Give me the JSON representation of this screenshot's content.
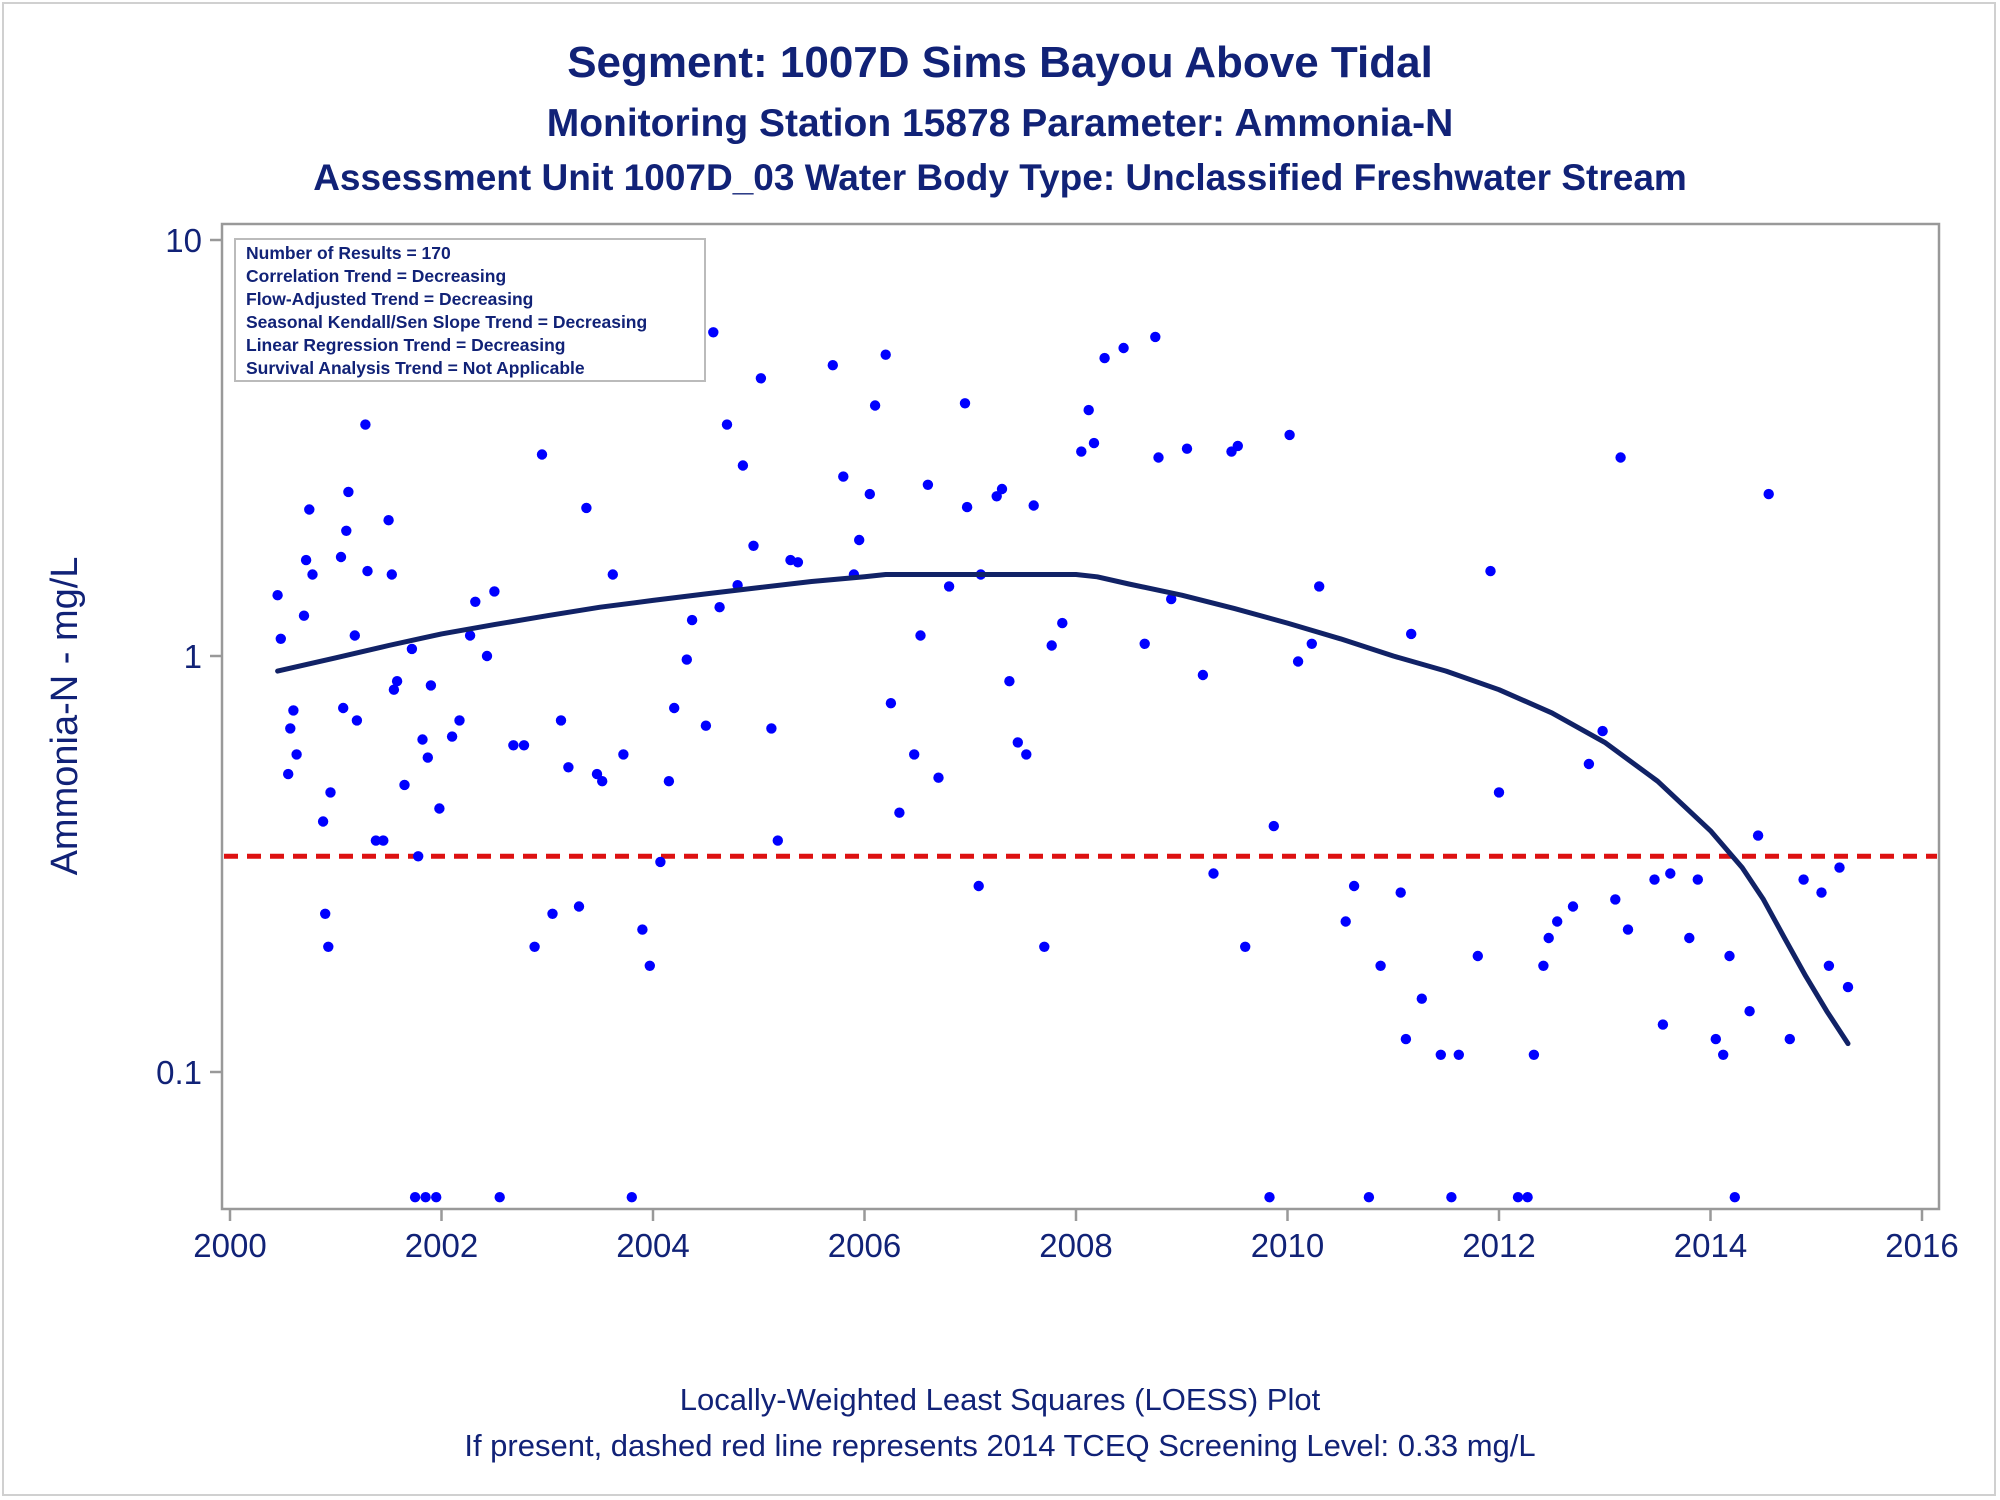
{
  "colors": {
    "text": "#112277",
    "points": "#0000ff",
    "loess": "#112266",
    "screening_line": "#dd1111",
    "frame": "#999999"
  },
  "titles": {
    "line1": "Segment: 1007D  Sims Bayou Above Tidal",
    "line2": "Monitoring Station 15878 Parameter: Ammonia-N",
    "line3": "Assessment Unit 1007D_03   Water Body Type: Unclassified Freshwater Stream"
  },
  "footnotes": {
    "line1": "Locally-Weighted Least Squares (LOESS) Plot",
    "line2": "If present, dashed red line represents 2014 TCEQ Screening Level: 0.33 mg/L"
  },
  "stats_box": [
    "Number of Results = 170",
    "Correlation Trend = Decreasing",
    "Flow-Adjusted Trend = Decreasing",
    "Seasonal Kendall/Sen Slope Trend = Decreasing",
    "Linear Regression Trend = Decreasing",
    "Survival Analysis Trend = Not Applicable"
  ],
  "chart_data": {
    "type": "scatter",
    "ylabel": "Ammonia-N - mg/L",
    "xlabel": "",
    "y_scale": "log",
    "xlim": [
      1999.85,
      2016.1
    ],
    "ylim": [
      0.047,
      11
    ],
    "x_ticks": [
      2000,
      2002,
      2004,
      2006,
      2008,
      2010,
      2012,
      2014,
      2016
    ],
    "y_ticks": [
      {
        "value": 10,
        "label": "10"
      },
      {
        "value": 1,
        "label": "1"
      },
      {
        "value": 0.1,
        "label": "0.1"
      }
    ],
    "screening_level": 0.33,
    "points": [
      [
        2000.45,
        1.4
      ],
      [
        2000.48,
        1.1
      ],
      [
        2000.55,
        0.52
      ],
      [
        2000.57,
        0.67
      ],
      [
        2000.6,
        0.74
      ],
      [
        2000.63,
        0.58
      ],
      [
        2000.7,
        1.25
      ],
      [
        2000.72,
        1.7
      ],
      [
        2000.75,
        2.25
      ],
      [
        2000.78,
        1.57
      ],
      [
        2000.88,
        0.4
      ],
      [
        2000.9,
        0.24
      ],
      [
        2000.93,
        0.2
      ],
      [
        2000.95,
        0.47
      ],
      [
        2001.05,
        1.73
      ],
      [
        2001.07,
        0.75
      ],
      [
        2001.1,
        2.0
      ],
      [
        2001.12,
        2.48
      ],
      [
        2001.18,
        1.12
      ],
      [
        2001.2,
        0.7
      ],
      [
        2001.28,
        3.6
      ],
      [
        2001.3,
        1.6
      ],
      [
        2001.38,
        0.36
      ],
      [
        2001.45,
        0.36
      ],
      [
        2001.5,
        2.12
      ],
      [
        2001.53,
        1.57
      ],
      [
        2001.55,
        0.83
      ],
      [
        2001.58,
        0.87
      ],
      [
        2001.65,
        0.49
      ],
      [
        2001.72,
        1.04
      ],
      [
        2001.75,
        0.05
      ],
      [
        2001.78,
        0.33
      ],
      [
        2001.82,
        0.63
      ],
      [
        2001.85,
        0.05
      ],
      [
        2001.87,
        0.57
      ],
      [
        2001.9,
        0.85
      ],
      [
        2001.95,
        0.05
      ],
      [
        2001.98,
        0.43
      ],
      [
        2002.1,
        0.64
      ],
      [
        2002.17,
        0.7
      ],
      [
        2002.27,
        1.12
      ],
      [
        2002.32,
        1.35
      ],
      [
        2002.43,
        1.0
      ],
      [
        2002.5,
        1.43
      ],
      [
        2002.55,
        0.05
      ],
      [
        2002.68,
        0.61
      ],
      [
        2002.78,
        0.61
      ],
      [
        2002.88,
        0.2
      ],
      [
        2002.95,
        3.05
      ],
      [
        2003.05,
        0.24
      ],
      [
        2003.13,
        0.7
      ],
      [
        2003.2,
        0.54
      ],
      [
        2003.3,
        0.25
      ],
      [
        2003.37,
        2.27
      ],
      [
        2003.47,
        0.52
      ],
      [
        2003.52,
        0.5
      ],
      [
        2003.62,
        1.57
      ],
      [
        2003.72,
        0.58
      ],
      [
        2003.8,
        0.05
      ],
      [
        2003.9,
        0.22
      ],
      [
        2003.97,
        0.18
      ],
      [
        2004.07,
        0.32
      ],
      [
        2004.15,
        0.5
      ],
      [
        2004.2,
        0.75
      ],
      [
        2004.32,
        0.98
      ],
      [
        2004.37,
        1.22
      ],
      [
        2004.5,
        0.68
      ],
      [
        2004.57,
        6.0
      ],
      [
        2004.63,
        1.31
      ],
      [
        2004.7,
        3.6
      ],
      [
        2004.8,
        1.48
      ],
      [
        2004.85,
        2.87
      ],
      [
        2004.95,
        1.84
      ],
      [
        2005.02,
        4.65
      ],
      [
        2005.12,
        0.67
      ],
      [
        2005.18,
        0.36
      ],
      [
        2005.3,
        1.7
      ],
      [
        2005.37,
        1.68
      ],
      [
        2005.7,
        5.0
      ],
      [
        2005.8,
        2.7
      ],
      [
        2005.9,
        1.57
      ],
      [
        2005.95,
        1.9
      ],
      [
        2006.05,
        2.45
      ],
      [
        2006.1,
        4.0
      ],
      [
        2006.2,
        5.3
      ],
      [
        2006.25,
        0.77
      ],
      [
        2006.33,
        0.42
      ],
      [
        2006.47,
        0.58
      ],
      [
        2006.53,
        1.12
      ],
      [
        2006.6,
        2.58
      ],
      [
        2006.7,
        0.51
      ],
      [
        2006.8,
        1.47
      ],
      [
        2006.95,
        4.05
      ],
      [
        2006.97,
        2.28
      ],
      [
        2007.08,
        0.28
      ],
      [
        2007.1,
        1.57
      ],
      [
        2007.25,
        2.42
      ],
      [
        2007.3,
        2.52
      ],
      [
        2007.37,
        0.87
      ],
      [
        2007.45,
        0.62
      ],
      [
        2007.53,
        0.58
      ],
      [
        2007.6,
        2.3
      ],
      [
        2007.7,
        0.2
      ],
      [
        2007.77,
        1.06
      ],
      [
        2007.87,
        1.2
      ],
      [
        2008.05,
        3.1
      ],
      [
        2008.12,
        3.9
      ],
      [
        2008.17,
        3.25
      ],
      [
        2008.27,
        5.2
      ],
      [
        2008.45,
        5.5
      ],
      [
        2008.65,
        1.07
      ],
      [
        2008.75,
        5.85
      ],
      [
        2008.78,
        3.0
      ],
      [
        2008.9,
        1.37
      ],
      [
        2009.05,
        3.15
      ],
      [
        2009.2,
        0.9
      ],
      [
        2009.3,
        0.3
      ],
      [
        2009.47,
        3.1
      ],
      [
        2009.53,
        3.2
      ],
      [
        2009.6,
        0.2
      ],
      [
        2009.83,
        0.05
      ],
      [
        2009.87,
        0.39
      ],
      [
        2010.02,
        3.4
      ],
      [
        2010.1,
        0.97
      ],
      [
        2010.23,
        1.07
      ],
      [
        2010.3,
        1.47
      ],
      [
        2010.55,
        0.23
      ],
      [
        2010.63,
        0.28
      ],
      [
        2010.77,
        0.05
      ],
      [
        2010.88,
        0.18
      ],
      [
        2011.07,
        0.27
      ],
      [
        2011.12,
        0.12
      ],
      [
        2011.17,
        1.13
      ],
      [
        2011.27,
        0.15
      ],
      [
        2011.45,
        0.11
      ],
      [
        2011.55,
        0.05
      ],
      [
        2011.62,
        0.11
      ],
      [
        2011.8,
        0.19
      ],
      [
        2011.92,
        1.6
      ],
      [
        2012.0,
        0.47
      ],
      [
        2012.18,
        0.05
      ],
      [
        2012.27,
        0.05
      ],
      [
        2012.33,
        0.11
      ],
      [
        2012.42,
        0.18
      ],
      [
        2012.47,
        0.21
      ],
      [
        2012.55,
        0.23
      ],
      [
        2012.7,
        0.25
      ],
      [
        2012.85,
        0.55
      ],
      [
        2012.98,
        0.66
      ],
      [
        2013.1,
        0.26
      ],
      [
        2013.15,
        3.0
      ],
      [
        2013.22,
        0.22
      ],
      [
        2013.47,
        0.29
      ],
      [
        2013.55,
        0.13
      ],
      [
        2013.62,
        0.3
      ],
      [
        2013.8,
        0.21
      ],
      [
        2013.88,
        0.29
      ],
      [
        2014.05,
        0.12
      ],
      [
        2014.12,
        0.11
      ],
      [
        2014.18,
        0.19
      ],
      [
        2014.23,
        0.05
      ],
      [
        2014.37,
        0.14
      ],
      [
        2014.45,
        0.37
      ],
      [
        2014.55,
        2.45
      ],
      [
        2014.75,
        0.12
      ],
      [
        2014.88,
        0.29
      ],
      [
        2015.05,
        0.27
      ],
      [
        2015.12,
        0.18
      ],
      [
        2015.22,
        0.31
      ],
      [
        2015.3,
        0.16
      ]
    ],
    "loess": [
      [
        2000.45,
        0.92
      ],
      [
        2001.0,
        0.99
      ],
      [
        2001.5,
        1.06
      ],
      [
        2002.0,
        1.13
      ],
      [
        2002.5,
        1.19
      ],
      [
        2003.0,
        1.25
      ],
      [
        2003.5,
        1.31
      ],
      [
        2004.0,
        1.36
      ],
      [
        2004.5,
        1.41
      ],
      [
        2005.0,
        1.46
      ],
      [
        2005.5,
        1.51
      ],
      [
        2006.0,
        1.55
      ],
      [
        2006.2,
        1.57
      ],
      [
        2006.5,
        1.57
      ],
      [
        2007.0,
        1.57
      ],
      [
        2007.5,
        1.57
      ],
      [
        2008.0,
        1.57
      ],
      [
        2008.2,
        1.55
      ],
      [
        2008.5,
        1.49
      ],
      [
        2009.0,
        1.4
      ],
      [
        2009.5,
        1.3
      ],
      [
        2010.0,
        1.2
      ],
      [
        2010.5,
        1.1
      ],
      [
        2011.0,
        1.0
      ],
      [
        2011.5,
        0.92
      ],
      [
        2012.0,
        0.83
      ],
      [
        2012.5,
        0.73
      ],
      [
        2013.0,
        0.62
      ],
      [
        2013.5,
        0.5
      ],
      [
        2014.0,
        0.38
      ],
      [
        2014.3,
        0.31
      ],
      [
        2014.5,
        0.26
      ],
      [
        2014.7,
        0.21
      ],
      [
        2014.9,
        0.17
      ],
      [
        2015.1,
        0.14
      ],
      [
        2015.3,
        0.117
      ]
    ]
  }
}
